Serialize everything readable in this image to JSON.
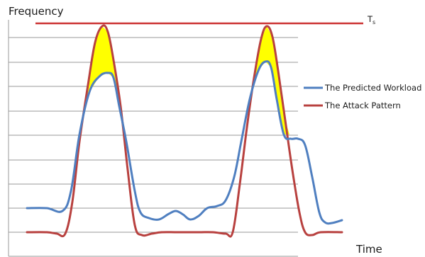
{
  "chart_data": {
    "type": "line",
    "ylabel": "Frequency",
    "xlabel": "Time",
    "grid": true,
    "legend_position": "right",
    "threshold": {
      "label": "T",
      "label_sub": "s",
      "color": "#cc3333",
      "value": 8.8
    },
    "colors": {
      "predicted": "#4f7fc0",
      "attack": "#b8413f",
      "fill": "#ffff00",
      "grid": "#9a9a9a"
    },
    "series": [
      {
        "name": "The Predicted Workload",
        "color": "#4f7fc0",
        "x": [
          0,
          0.8,
          1.2,
          1.7,
          2.0,
          2.5,
          3.0,
          3.5,
          3.7,
          4.0,
          4.5,
          5.0,
          5.2,
          5.8,
          6.2,
          6.8,
          7.2,
          7.7,
          8.0,
          8.6,
          9.0,
          9.3,
          9.8,
          10.3,
          10.8,
          11.2,
          11.5,
          12.0,
          12.3,
          12.6
        ],
        "values": [
          1.0,
          1.0,
          0.85,
          3.5,
          5.5,
          6.6,
          6.1,
          2.2,
          0.9,
          0.5,
          0.75,
          0.5,
          0.55,
          1.0,
          1.7,
          5.6,
          7.3,
          6.9,
          3.9,
          3.6,
          1.3,
          0.4,
          0.5,
          0.5,
          0.5,
          0.5,
          0.5,
          0.5,
          0.5,
          0.5
        ]
      },
      {
        "name": "The Attack Pattern",
        "color": "#b8413f",
        "x": [
          0,
          0.8,
          1.2,
          1.7,
          2.0,
          2.5,
          3.0,
          3.5,
          3.7,
          4.0,
          4.5,
          5.0,
          5.5,
          6.0,
          6.5,
          6.8,
          7.2,
          7.7,
          8.0,
          8.6,
          9.0,
          9.4,
          10.0,
          10.5,
          11.0,
          11.3,
          11.6,
          12.0,
          12.3,
          12.6
        ],
        "values": [
          0,
          0,
          0,
          3.0,
          5.5,
          8.8,
          6.5,
          0.5,
          0,
          0,
          0,
          0,
          0,
          0,
          0,
          0,
          0,
          0,
          0,
          0,
          0,
          0,
          0,
          0,
          0,
          0,
          0,
          0,
          0,
          0
        ]
      }
    ]
  }
}
